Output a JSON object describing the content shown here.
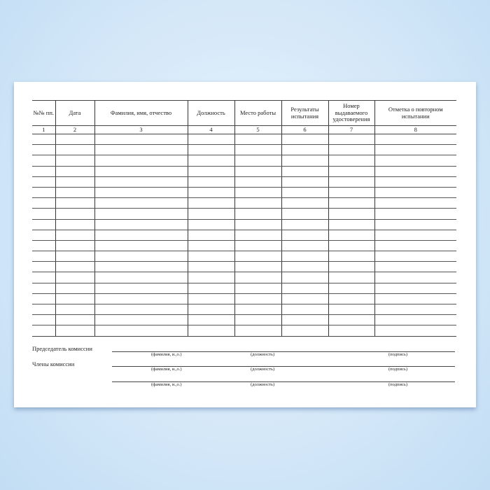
{
  "table": {
    "headers": [
      "№№ пп.",
      "Дата",
      "Фамилия, имя, отчество",
      "Должность",
      "Место работы",
      "Результаты испытания",
      "Номер выдаваемого удостоверения",
      "Отметка о повторном испытании"
    ],
    "column_numbers": [
      "1",
      "2",
      "3",
      "4",
      "5",
      "6",
      "7",
      "8"
    ],
    "empty_rows": 19
  },
  "signatures": {
    "chairman_label": "Председатель комиссии",
    "members_label": "Члены комиссии",
    "caption_name": "(фамилия, и.,о.)",
    "caption_position": "(должность)",
    "caption_signature": "(подпись)"
  }
}
